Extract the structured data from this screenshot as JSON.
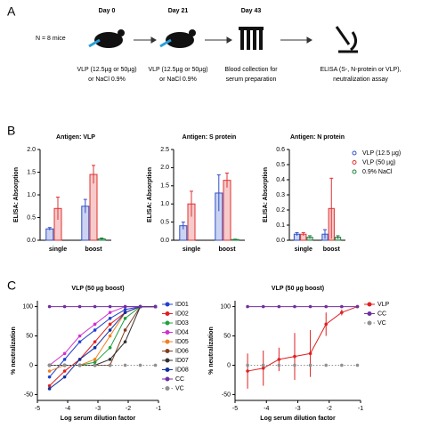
{
  "panel_labels": [
    "A",
    "B",
    "C"
  ],
  "schematic": {
    "cohort": "N = 8 mice",
    "steps": [
      {
        "day": "Day 0",
        "lines": [
          "VLP (12.5µg or 50µg)",
          "or NaCl 0.9%"
        ]
      },
      {
        "day": "Day 21",
        "lines": [
          "VLP (12.5µg or 50µg)",
          "or NaCl 0.9%"
        ]
      },
      {
        "day": "Day 43",
        "lines": [
          "Blood collection for",
          "serum preparation"
        ]
      },
      {
        "lines": [
          "ELISA (S-, N-protein or VLP),",
          "neutralization assay"
        ]
      }
    ]
  },
  "chart_data": [
    {
      "type": "bar",
      "title": "Antigen: VLP",
      "y_label": "ELISA: Absorption",
      "categories": [
        "single",
        "boost"
      ],
      "ylim": [
        0,
        2
      ],
      "yticks": [
        {
          "value": 0,
          "label": "0.0"
        },
        {
          "value": 0.5,
          "label": "0.5"
        },
        {
          "value": 1,
          "label": "1.0"
        },
        {
          "value": 1.5,
          "label": "1.5"
        },
        {
          "value": 2,
          "label": "2.0"
        }
      ],
      "series": [
        {
          "color": "#3050c8",
          "values": [
            0.25,
            0.75
          ],
          "errors": [
            0.03,
            0.15
          ]
        },
        {
          "color": "#e03030",
          "values": [
            0.7,
            1.45
          ],
          "errors": [
            0.25,
            0.2
          ]
        },
        {
          "color": "#208040",
          "values": [
            null,
            0.03
          ],
          "errors": [
            null,
            0.02
          ]
        }
      ]
    },
    {
      "type": "bar",
      "title": "Antigen: S protein",
      "y_label": "ELISA: Absorption",
      "categories": [
        "single",
        "boost"
      ],
      "ylim": [
        0,
        2.5
      ],
      "yticks": [
        {
          "value": 0,
          "label": "0.0"
        },
        {
          "value": 0.5,
          "label": "0.5"
        },
        {
          "value": 1,
          "label": "1.0"
        },
        {
          "value": 1.5,
          "label": "1.5"
        },
        {
          "value": 2,
          "label": "2.0"
        },
        {
          "value": 2.5,
          "label": "2.5"
        }
      ],
      "series": [
        {
          "color": "#3050c8",
          "values": [
            0.4,
            1.3
          ],
          "errors": [
            0.1,
            0.5
          ]
        },
        {
          "color": "#e03030",
          "values": [
            1.0,
            1.65
          ],
          "errors": [
            0.35,
            0.2
          ]
        },
        {
          "color": "#208040",
          "values": [
            null,
            0.02
          ],
          "errors": [
            null,
            0.01
          ]
        }
      ]
    },
    {
      "type": "bar",
      "title": "Antigen: N protein",
      "y_label": "ELISA: Absorption",
      "categories": [
        "single",
        "boost"
      ],
      "legend": "right",
      "ylim": [
        0,
        0.6
      ],
      "yticks": [
        {
          "value": 0,
          "label": "0.0"
        },
        0.1,
        0.2,
        0.3,
        0.4,
        0.5,
        0.6
      ],
      "series": [
        {
          "name": "VLP (12.5 µg)",
          "color": "#3050c8",
          "values": [
            0.04,
            0.04
          ],
          "errors": [
            0.01,
            0.03
          ]
        },
        {
          "name": "VLP (50 µg)",
          "color": "#e03030",
          "values": [
            0.04,
            0.21
          ],
          "errors": [
            0.01,
            0.2
          ]
        },
        {
          "name": "0.9% NaCl",
          "color": "#208040",
          "values": [
            0.02,
            0.02
          ],
          "errors": [
            0.01,
            0.01
          ]
        }
      ]
    },
    {
      "type": "line",
      "title": "VLP (50 µg boost)",
      "y_label": "% neutralization",
      "x_label": "Log serum dilution factor",
      "legend": "right",
      "xlim": [
        -5,
        -1
      ],
      "xticks": [
        -5,
        -4,
        -3,
        -2,
        -1
      ],
      "ylim": [
        -60,
        110
      ],
      "yticks": [
        -50,
        0,
        50,
        100
      ],
      "x": [
        -4.6,
        -4.1,
        -3.6,
        -3.1,
        -2.6,
        -2.1,
        -1.6,
        -1.1
      ],
      "series": [
        {
          "name": "ID01",
          "color": "#2040d0",
          "values": [
            -20,
            10,
            40,
            60,
            80,
            95,
            100,
            100
          ]
        },
        {
          "name": "ID02",
          "color": "#e02020",
          "values": [
            -35,
            -10,
            10,
            40,
            70,
            90,
            100,
            100
          ]
        },
        {
          "name": "ID03",
          "color": "#20a040",
          "values": [
            0,
            0,
            0,
            5,
            30,
            80,
            100,
            100
          ]
        },
        {
          "name": "ID04",
          "color": "#d030d0",
          "values": [
            0,
            20,
            50,
            70,
            90,
            100,
            100,
            100
          ]
        },
        {
          "name": "ID05",
          "color": "#f08020",
          "values": [
            -10,
            0,
            0,
            10,
            50,
            90,
            100,
            100
          ]
        },
        {
          "name": "ID06",
          "color": "#804020",
          "values": [
            0,
            0,
            0,
            0,
            0,
            60,
            100,
            100
          ]
        },
        {
          "name": "ID07",
          "color": "#303030",
          "values": [
            0,
            0,
            0,
            0,
            10,
            40,
            100,
            100
          ]
        },
        {
          "name": "ID08",
          "color": "#1030a0",
          "values": [
            -40,
            -20,
            10,
            30,
            60,
            90,
            100,
            100
          ]
        },
        {
          "name": "CC",
          "color": "#7030a0",
          "values": [
            100,
            100,
            100,
            100,
            100,
            100,
            100,
            100
          ]
        },
        {
          "name": "VC",
          "color": "#909090",
          "style": "dotted",
          "values": [
            0,
            0,
            0,
            0,
            0,
            0,
            0,
            0
          ]
        }
      ]
    },
    {
      "type": "line",
      "title": "VLP (50 µg boost)",
      "y_label": "% neutralization",
      "x_label": "Log serum dilution factor",
      "legend": "right",
      "xlim": [
        -5,
        -1
      ],
      "xticks": [
        -5,
        -4,
        -3,
        -2,
        -1
      ],
      "ylim": [
        -60,
        110
      ],
      "yticks": [
        -50,
        0,
        50,
        100
      ],
      "x": [
        -4.6,
        -4.1,
        -3.6,
        -3.1,
        -2.6,
        -2.1,
        -1.6,
        -1.1
      ],
      "series": [
        {
          "name": "VLP",
          "color": "#e02020",
          "values": [
            -10,
            -5,
            10,
            15,
            20,
            70,
            90,
            100
          ],
          "errors": [
            30,
            30,
            20,
            40,
            40,
            20,
            5,
            0
          ]
        },
        {
          "name": "CC",
          "color": "#7030a0",
          "values": [
            100,
            100,
            100,
            100,
            100,
            100,
            100,
            100
          ]
        },
        {
          "name": "VC",
          "color": "#909090",
          "style": "dotted",
          "values": [
            0,
            0,
            0,
            0,
            0,
            0,
            0,
            0
          ]
        }
      ]
    }
  ]
}
